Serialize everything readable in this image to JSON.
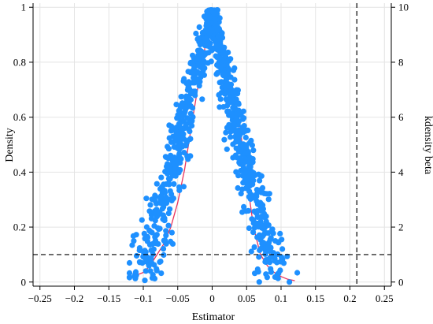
{
  "chart_data": {
    "type": "scatter",
    "xlabel": "Estimator",
    "ylabel": "Density",
    "ylabel_right": "kdensity beta",
    "xlim": [
      -0.26,
      0.26
    ],
    "ylim": [
      -0.015,
      1.015
    ],
    "ylim_right": [
      -0.15,
      10.15
    ],
    "x_ticks": [
      -0.25,
      -0.2,
      -0.15,
      -0.1,
      -0.05,
      0,
      0.05,
      0.1,
      0.15,
      0.2,
      0.25
    ],
    "x_tick_labels": [
      "−0.25",
      "−0.2",
      "−0.15",
      "−0.1",
      "−0.05",
      "0",
      "0.05",
      "0.1",
      "0.15",
      "0.2",
      "0.25"
    ],
    "y_ticks": [
      0,
      0.2,
      0.4,
      0.6,
      0.8,
      1
    ],
    "y_tick_labels": [
      "0",
      "0.2",
      "0.4",
      "0.6",
      "0.8",
      "1"
    ],
    "y_right_ticks": [
      0,
      2,
      4,
      6,
      8,
      10
    ],
    "y_right_tick_labels": [
      "0",
      "2",
      "4",
      "6",
      "8",
      "10"
    ],
    "grid": true,
    "reference_lines": {
      "vertical_x": 0.21,
      "horizontal_y": 0.1
    },
    "point_count": 1000,
    "point_distribution": {
      "center": 0.0,
      "x_min": -0.12,
      "x_max": 0.135,
      "y_peak": 0.99,
      "y_min": 0.0
    },
    "kdensity_curve": {
      "x": [
        -0.12,
        -0.1,
        -0.09,
        -0.08,
        -0.07,
        -0.06,
        -0.05,
        -0.04,
        -0.03,
        -0.02,
        -0.01,
        -0.005,
        0,
        0.005,
        0.01,
        0.02,
        0.03,
        0.04,
        0.05,
        0.06,
        0.07,
        0.08,
        0.09,
        0.1,
        0.11,
        0.12
      ],
      "y": [
        0.15,
        0.35,
        0.6,
        1.0,
        1.4,
        2.0,
        2.9,
        4.1,
        5.7,
        7.2,
        8.6,
        9.4,
        9.85,
        9.45,
        8.7,
        7.3,
        6.4,
        5.7,
        3.8,
        2.0,
        1.0,
        0.6,
        0.35,
        0.2,
        0.1,
        0.05
      ]
    },
    "colors": {
      "points": "#1e90ff",
      "curve": "#e8335e",
      "reference": "#000000",
      "grid": "#e4e4e4"
    }
  }
}
